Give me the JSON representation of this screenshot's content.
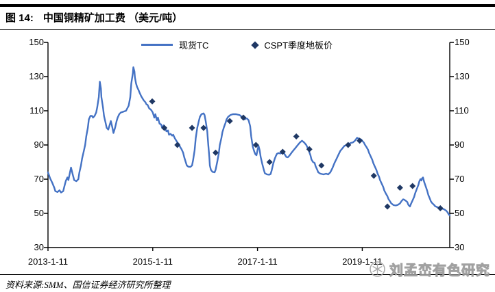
{
  "header": {
    "figure_label": "图 14:",
    "title": "中国铜精矿加工费 （美元/吨）"
  },
  "legend": [
    {
      "label": "现货TC",
      "type": "line",
      "color": "#4472C4"
    },
    {
      "label": "CSPT季度地板价",
      "type": "diamond",
      "color": "#1F3864"
    }
  ],
  "footer": {
    "source": "资料来源:SMM、国信证券经济研究所整理"
  },
  "watermark": {
    "text": "刘孟峦有色研究",
    "icon": "snowflake-badge-icon"
  },
  "colors": {
    "line": "#4472C4",
    "diamond": "#1F3864",
    "axis": "#000000"
  },
  "chart_data": {
    "type": "line",
    "title": "中国铜精矿加工费（美元/吨）",
    "xlabel": "",
    "ylabel": "美元/吨",
    "grid": false,
    "legend_position": "top-center",
    "x_axis": {
      "min": 2013.03,
      "max": 2020.7,
      "ticks": [
        {
          "label": "2013-1-11",
          "year": 2013.03
        },
        {
          "label": "2015-1-11",
          "year": 2015.03
        },
        {
          "label": "2017-1-11",
          "year": 2017.03
        },
        {
          "label": "2019-1-11",
          "year": 2019.03
        }
      ]
    },
    "y_axis": {
      "min": 30,
      "max": 150,
      "ticks": [
        30,
        50,
        70,
        90,
        110,
        130,
        150
      ],
      "sides": [
        "left",
        "right"
      ]
    },
    "series": [
      {
        "name": "现货TC",
        "type": "line",
        "color": "#4472C4",
        "points": [
          [
            2013.03,
            74
          ],
          [
            2013.07,
            70.5
          ],
          [
            2013.11,
            68
          ],
          [
            2013.15,
            65
          ],
          [
            2013.17,
            63
          ],
          [
            2013.21,
            62.5
          ],
          [
            2013.25,
            63.5
          ],
          [
            2013.28,
            62.2
          ],
          [
            2013.32,
            63
          ],
          [
            2013.34,
            65.5
          ],
          [
            2013.37,
            69
          ],
          [
            2013.4,
            71
          ],
          [
            2013.42,
            69.5
          ],
          [
            2013.45,
            74
          ],
          [
            2013.47,
            76.8
          ],
          [
            2013.5,
            73
          ],
          [
            2013.53,
            69.5
          ],
          [
            2013.57,
            68.8
          ],
          [
            2013.61,
            70
          ],
          [
            2013.63,
            74
          ],
          [
            2013.66,
            78
          ],
          [
            2013.68,
            82
          ],
          [
            2013.71,
            86
          ],
          [
            2013.74,
            90
          ],
          [
            2013.76,
            95
          ],
          [
            2013.79,
            100
          ],
          [
            2013.81,
            105
          ],
          [
            2013.84,
            107
          ],
          [
            2013.87,
            107
          ],
          [
            2013.89,
            106
          ],
          [
            2013.92,
            107
          ],
          [
            2013.95,
            109
          ],
          [
            2013.97,
            112
          ],
          [
            2014.0,
            118
          ],
          [
            2014.02,
            127
          ],
          [
            2014.04,
            123
          ],
          [
            2014.05,
            118
          ],
          [
            2014.08,
            112
          ],
          [
            2014.1,
            107
          ],
          [
            2014.13,
            103
          ],
          [
            2014.15,
            100
          ],
          [
            2014.18,
            99
          ],
          [
            2014.21,
            102
          ],
          [
            2014.23,
            104
          ],
          [
            2014.26,
            100
          ],
          [
            2014.28,
            97
          ],
          [
            2014.31,
            100
          ],
          [
            2014.34,
            104
          ],
          [
            2014.36,
            106
          ],
          [
            2014.39,
            108
          ],
          [
            2014.42,
            109
          ],
          [
            2014.47,
            109.5
          ],
          [
            2014.52,
            110
          ],
          [
            2014.57,
            113
          ],
          [
            2014.6,
            118
          ],
          [
            2014.62,
            126
          ],
          [
            2014.65,
            132
          ],
          [
            2014.66,
            135.5
          ],
          [
            2014.68,
            133
          ],
          [
            2014.69,
            129.5
          ],
          [
            2014.71,
            126
          ],
          [
            2014.73,
            124
          ],
          [
            2014.76,
            122
          ],
          [
            2014.78,
            120.5
          ],
          [
            2014.81,
            118.5
          ],
          [
            2014.83,
            117.5
          ],
          [
            2014.86,
            116
          ],
          [
            2014.89,
            115
          ],
          [
            2014.91,
            113.8
          ],
          [
            2014.93,
            113.5
          ],
          [
            2014.96,
            111.5
          ],
          [
            2015.0,
            110.5
          ],
          [
            2015.03,
            109
          ],
          [
            2015.06,
            106
          ],
          [
            2015.08,
            108
          ],
          [
            2015.11,
            104.5
          ],
          [
            2015.13,
            106
          ],
          [
            2015.16,
            102.5
          ],
          [
            2015.19,
            102
          ],
          [
            2015.21,
            100
          ],
          [
            2015.24,
            101.5
          ],
          [
            2015.26,
            100.5
          ],
          [
            2015.29,
            98
          ],
          [
            2015.32,
            98.5
          ],
          [
            2015.34,
            96
          ],
          [
            2015.37,
            96.5
          ],
          [
            2015.4,
            95.5
          ],
          [
            2015.42,
            96
          ],
          [
            2015.45,
            94
          ],
          [
            2015.47,
            93
          ],
          [
            2015.5,
            91.5
          ],
          [
            2015.53,
            90.5
          ],
          [
            2015.55,
            89
          ],
          [
            2015.58,
            87.5
          ],
          [
            2015.61,
            85.5
          ],
          [
            2015.63,
            83
          ],
          [
            2015.66,
            80
          ],
          [
            2015.68,
            78
          ],
          [
            2015.71,
            77.3
          ],
          [
            2015.75,
            77.2
          ],
          [
            2015.78,
            78
          ],
          [
            2015.8,
            81
          ],
          [
            2015.83,
            87
          ],
          [
            2015.85,
            94
          ],
          [
            2015.88,
            100
          ],
          [
            2015.91,
            104
          ],
          [
            2015.93,
            106.5
          ],
          [
            2015.96,
            108
          ],
          [
            2016.0,
            108.5
          ],
          [
            2016.02,
            107.5
          ],
          [
            2016.04,
            104
          ],
          [
            2016.07,
            98
          ],
          [
            2016.09,
            90
          ],
          [
            2016.11,
            83
          ],
          [
            2016.12,
            78
          ],
          [
            2016.14,
            75.5
          ],
          [
            2016.17,
            74.3
          ],
          [
            2016.21,
            74
          ],
          [
            2016.23,
            75.5
          ],
          [
            2016.26,
            80
          ],
          [
            2016.29,
            85
          ],
          [
            2016.31,
            90
          ],
          [
            2016.34,
            94
          ],
          [
            2016.36,
            97.5
          ],
          [
            2016.39,
            100.5
          ],
          [
            2016.42,
            103
          ],
          [
            2016.44,
            105
          ],
          [
            2016.47,
            106.5
          ],
          [
            2016.51,
            107.5
          ],
          [
            2016.56,
            108
          ],
          [
            2016.62,
            108
          ],
          [
            2016.69,
            107.5
          ],
          [
            2016.73,
            106.5
          ],
          [
            2016.76,
            105.5
          ],
          [
            2016.78,
            105
          ],
          [
            2016.81,
            105.5
          ],
          [
            2016.83,
            105.5
          ],
          [
            2016.86,
            104.5
          ],
          [
            2016.89,
            101
          ],
          [
            2016.91,
            95
          ],
          [
            2016.94,
            89
          ],
          [
            2016.97,
            86
          ],
          [
            2016.99,
            84.5
          ],
          [
            2017.01,
            84
          ],
          [
            2017.03,
            87
          ],
          [
            2017.05,
            89.5
          ],
          [
            2017.07,
            87
          ],
          [
            2017.09,
            83
          ],
          [
            2017.12,
            79
          ],
          [
            2017.15,
            75.5
          ],
          [
            2017.17,
            73.5
          ],
          [
            2017.21,
            72.8
          ],
          [
            2017.25,
            72.6
          ],
          [
            2017.28,
            73
          ],
          [
            2017.3,
            75
          ],
          [
            2017.33,
            79
          ],
          [
            2017.36,
            82
          ],
          [
            2017.38,
            83.5
          ],
          [
            2017.4,
            84.8
          ],
          [
            2017.43,
            85.3
          ],
          [
            2017.47,
            85
          ],
          [
            2017.5,
            85.8
          ],
          [
            2017.53,
            85.5
          ],
          [
            2017.55,
            84.5
          ],
          [
            2017.58,
            83
          ],
          [
            2017.61,
            82.8
          ],
          [
            2017.64,
            83.8
          ],
          [
            2017.68,
            85.5
          ],
          [
            2017.72,
            87
          ],
          [
            2017.76,
            88.5
          ],
          [
            2017.8,
            90
          ],
          [
            2017.84,
            91.5
          ],
          [
            2017.88,
            92.5
          ],
          [
            2017.92,
            91.5
          ],
          [
            2017.96,
            90
          ],
          [
            2018.0,
            87.5
          ],
          [
            2018.04,
            84
          ],
          [
            2018.06,
            81.5
          ],
          [
            2018.09,
            80
          ],
          [
            2018.12,
            79.5
          ],
          [
            2018.14,
            77.5
          ],
          [
            2018.17,
            75.5
          ],
          [
            2018.19,
            74
          ],
          [
            2018.23,
            73.2
          ],
          [
            2018.29,
            72.8
          ],
          [
            2018.34,
            73.2
          ],
          [
            2018.38,
            72.8
          ],
          [
            2018.42,
            74
          ],
          [
            2018.46,
            76.5
          ],
          [
            2018.5,
            79.5
          ],
          [
            2018.54,
            82
          ],
          [
            2018.57,
            84
          ],
          [
            2018.61,
            86.5
          ],
          [
            2018.65,
            88
          ],
          [
            2018.69,
            89.5
          ],
          [
            2018.73,
            90
          ],
          [
            2018.77,
            90.5
          ],
          [
            2018.81,
            91.2
          ],
          [
            2018.85,
            91.5
          ],
          [
            2018.89,
            92.5
          ],
          [
            2018.93,
            94.2
          ],
          [
            2018.97,
            93.6
          ],
          [
            2019.01,
            93.2
          ],
          [
            2019.03,
            92.4
          ],
          [
            2019.06,
            91.4
          ],
          [
            2019.08,
            90.2
          ],
          [
            2019.11,
            88.8
          ],
          [
            2019.14,
            87.2
          ],
          [
            2019.16,
            85.4
          ],
          [
            2019.19,
            83.4
          ],
          [
            2019.22,
            81.4
          ],
          [
            2019.24,
            79.4
          ],
          [
            2019.27,
            77.4
          ],
          [
            2019.3,
            75.4
          ],
          [
            2019.32,
            73.4
          ],
          [
            2019.35,
            71.4
          ],
          [
            2019.37,
            69.4
          ],
          [
            2019.4,
            67.4
          ],
          [
            2019.43,
            65.4
          ],
          [
            2019.45,
            63.4
          ],
          [
            2019.48,
            61.6
          ],
          [
            2019.51,
            60
          ],
          [
            2019.53,
            58.4
          ],
          [
            2019.56,
            57
          ],
          [
            2019.58,
            56
          ],
          [
            2019.61,
            55.2
          ],
          [
            2019.63,
            54.8
          ],
          [
            2019.67,
            54.6
          ],
          [
            2019.71,
            55
          ],
          [
            2019.75,
            55.8
          ],
          [
            2019.78,
            57.2
          ],
          [
            2019.81,
            58.2
          ],
          [
            2019.83,
            58
          ],
          [
            2019.86,
            57.4
          ],
          [
            2019.89,
            56.6
          ],
          [
            2019.91,
            55
          ],
          [
            2019.94,
            54
          ],
          [
            2019.96,
            55.6
          ],
          [
            2019.99,
            57.6
          ],
          [
            2020.02,
            59.6
          ],
          [
            2020.04,
            61.8
          ],
          [
            2020.07,
            64.2
          ],
          [
            2020.1,
            66.6
          ],
          [
            2020.12,
            68.8
          ],
          [
            2020.14,
            70
          ],
          [
            2020.16,
            69.2
          ],
          [
            2020.17,
            70.4
          ],
          [
            2020.19,
            71
          ],
          [
            2020.21,
            68.5
          ],
          [
            2020.24,
            65.8
          ],
          [
            2020.27,
            63.2
          ],
          [
            2020.29,
            60.8
          ],
          [
            2020.32,
            58.6
          ],
          [
            2020.34,
            57
          ],
          [
            2020.37,
            55.8
          ],
          [
            2020.4,
            55
          ],
          [
            2020.42,
            54.2
          ],
          [
            2020.45,
            53.8
          ],
          [
            2020.48,
            53.4
          ],
          [
            2020.51,
            53
          ],
          [
            2020.55,
            52.8
          ],
          [
            2020.59,
            52.4
          ],
          [
            2020.63,
            51.6
          ],
          [
            2020.66,
            50.6
          ],
          [
            2020.68,
            49.4
          ],
          [
            2020.7,
            48.8
          ]
        ]
      },
      {
        "name": "CSPT季度地板价",
        "type": "scatter",
        "marker": "diamond",
        "color": "#1F3864",
        "points": [
          [
            2015.02,
            115.5
          ],
          [
            2015.25,
            100
          ],
          [
            2015.5,
            90
          ],
          [
            2015.78,
            100
          ],
          [
            2016.0,
            100
          ],
          [
            2016.23,
            85.5
          ],
          [
            2016.5,
            104
          ],
          [
            2016.76,
            106
          ],
          [
            2017.0,
            90
          ],
          [
            2017.26,
            80
          ],
          [
            2017.51,
            86
          ],
          [
            2017.77,
            95
          ],
          [
            2018.02,
            87.5
          ],
          [
            2018.25,
            78
          ],
          [
            2018.76,
            90
          ],
          [
            2018.98,
            92.5
          ],
          [
            2019.25,
            72
          ],
          [
            2019.51,
            54
          ],
          [
            2019.75,
            65
          ],
          [
            2019.99,
            66
          ],
          [
            2020.52,
            53
          ]
        ]
      }
    ]
  }
}
